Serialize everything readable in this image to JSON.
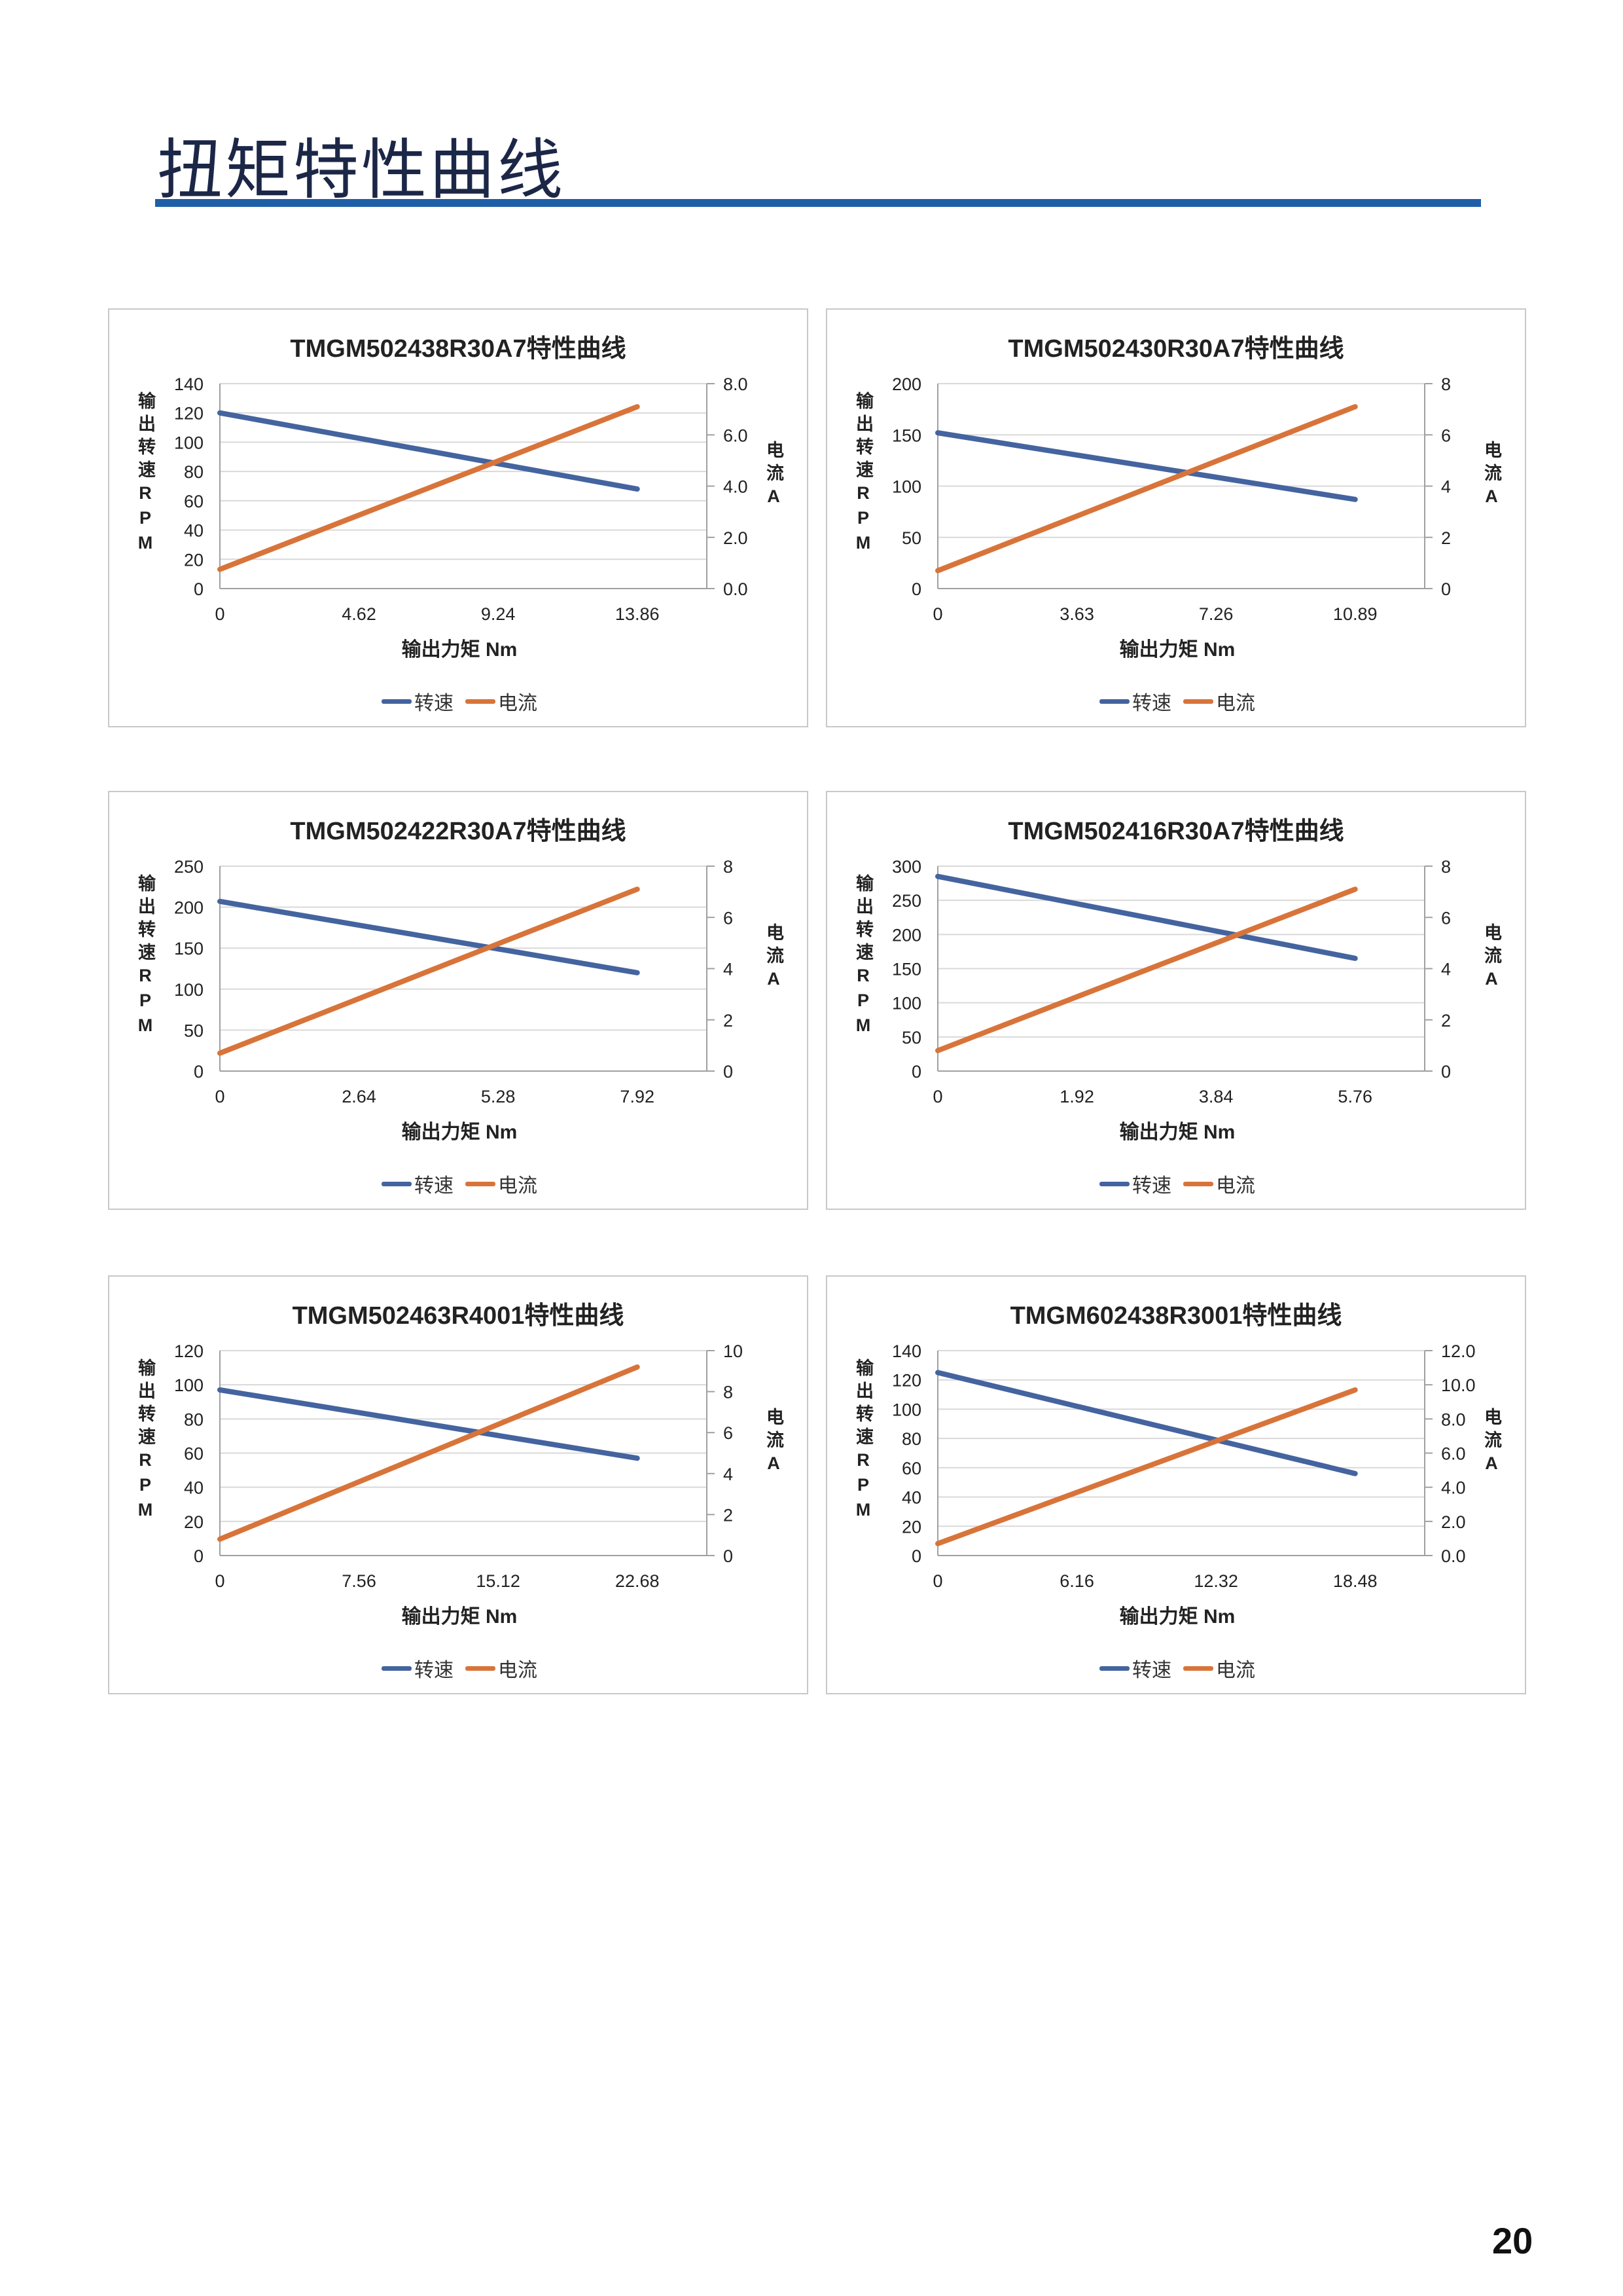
{
  "page": {
    "title": "扭矩特性曲线",
    "page_number": "20"
  },
  "colors": {
    "speed": "#44649f",
    "current": "#d8743a",
    "title_bar": "#1f5fa8",
    "grid": "#d9d9d9"
  },
  "chart_data": [
    {
      "type": "line",
      "title": "TMGM502438R30A7特性曲线",
      "xlabel": "输出力矩 Nm",
      "ylabel": "输出转速RPM",
      "ylabel_right": "电流A",
      "categories": [
        "0",
        "4.62",
        "9.24",
        "13.86"
      ],
      "y_ticks": [
        "0",
        "20",
        "40",
        "60",
        "80",
        "100",
        "120",
        "140"
      ],
      "ylim": [
        0,
        140
      ],
      "y2_ticks": [
        "0.0",
        "2.0",
        "4.0",
        "6.0",
        "8.0"
      ],
      "y2lim": [
        0,
        8
      ],
      "series": [
        {
          "name": "转速",
          "axis": "left",
          "values": [
            120,
            102.7,
            85.3,
            68
          ]
        },
        {
          "name": "电流",
          "axis": "right",
          "values": [
            0.75,
            2.87,
            4.98,
            7.1
          ]
        }
      ],
      "legend": "bottom"
    },
    {
      "type": "line",
      "title": "TMGM502430R30A7特性曲线",
      "xlabel": "输出力矩 Nm",
      "ylabel": "输出转速RPM",
      "ylabel_right": "电流A",
      "categories": [
        "0",
        "3.63",
        "7.26",
        "10.89"
      ],
      "y_ticks": [
        "0",
        "50",
        "100",
        "150",
        "200"
      ],
      "ylim": [
        0,
        200
      ],
      "y2_ticks": [
        "0",
        "2",
        "4",
        "6",
        "8"
      ],
      "y2lim": [
        0,
        8
      ],
      "series": [
        {
          "name": "转速",
          "axis": "left",
          "values": [
            152,
            130.3,
            108.7,
            87
          ]
        },
        {
          "name": "电流",
          "axis": "right",
          "values": [
            0.7,
            2.83,
            4.97,
            7.1
          ]
        }
      ],
      "legend": "bottom"
    },
    {
      "type": "line",
      "title": "TMGM502422R30A7特性曲线",
      "xlabel": "输出力矩 Nm",
      "ylabel": "输出转速RPM",
      "ylabel_right": "电流A",
      "categories": [
        "0",
        "2.64",
        "5.28",
        "7.92"
      ],
      "y_ticks": [
        "0",
        "50",
        "100",
        "150",
        "200",
        "250"
      ],
      "ylim": [
        0,
        250
      ],
      "y2_ticks": [
        "0",
        "2",
        "4",
        "6",
        "8"
      ],
      "y2lim": [
        0,
        8
      ],
      "series": [
        {
          "name": "转速",
          "axis": "left",
          "values": [
            207,
            178,
            149,
            120
          ]
        },
        {
          "name": "电流",
          "axis": "right",
          "values": [
            0.7,
            2.83,
            4.97,
            7.1
          ]
        }
      ],
      "legend": "bottom"
    },
    {
      "type": "line",
      "title": "TMGM502416R30A7特性曲线",
      "xlabel": "输出力矩 Nm",
      "ylabel": "输出转速RPM",
      "ylabel_right": "电流A",
      "categories": [
        "0",
        "1.92",
        "3.84",
        "5.76"
      ],
      "y_ticks": [
        "0",
        "50",
        "100",
        "150",
        "200",
        "250",
        "300"
      ],
      "ylim": [
        0,
        300
      ],
      "y2_ticks": [
        "0",
        "2",
        "4",
        "6",
        "8"
      ],
      "y2lim": [
        0,
        8
      ],
      "series": [
        {
          "name": "转速",
          "axis": "left",
          "values": [
            285,
            245,
            205,
            165
          ]
        },
        {
          "name": "电流",
          "axis": "right",
          "values": [
            0.8,
            2.9,
            5.0,
            7.1
          ]
        }
      ],
      "legend": "bottom"
    },
    {
      "type": "line",
      "title": "TMGM502463R4001特性曲线",
      "xlabel": "输出力矩 Nm",
      "ylabel": "输出转速RPM",
      "ylabel_right": "电流A",
      "categories": [
        "0",
        "7.56",
        "15.12",
        "22.68"
      ],
      "y_ticks": [
        "0",
        "20",
        "40",
        "60",
        "80",
        "100",
        "120"
      ],
      "ylim": [
        0,
        120
      ],
      "y2_ticks": [
        "0",
        "2",
        "4",
        "6",
        "8",
        "10"
      ],
      "y2lim": [
        0,
        10
      ],
      "series": [
        {
          "name": "转速",
          "axis": "left",
          "values": [
            97,
            83.7,
            70.3,
            57
          ]
        },
        {
          "name": "电流",
          "axis": "right",
          "values": [
            0.8,
            3.6,
            6.4,
            9.2
          ]
        }
      ],
      "legend": "bottom"
    },
    {
      "type": "line",
      "title": "TMGM602438R3001特性曲线",
      "xlabel": "输出力矩 Nm",
      "ylabel": "输出转速RPM",
      "ylabel_right": "电流A",
      "categories": [
        "0",
        "6.16",
        "12.32",
        "18.48"
      ],
      "y_ticks": [
        "0",
        "20",
        "40",
        "60",
        "80",
        "100",
        "120",
        "140"
      ],
      "ylim": [
        0,
        140
      ],
      "y2_ticks": [
        "0.0",
        "2.0",
        "4.0",
        "6.0",
        "8.0",
        "10.0",
        "12.0"
      ],
      "y2lim": [
        0,
        12
      ],
      "series": [
        {
          "name": "转速",
          "axis": "left",
          "values": [
            125,
            102,
            79,
            56
          ]
        },
        {
          "name": "电流",
          "axis": "right",
          "values": [
            0.7,
            3.7,
            6.7,
            9.7
          ]
        }
      ],
      "legend": "bottom"
    }
  ]
}
